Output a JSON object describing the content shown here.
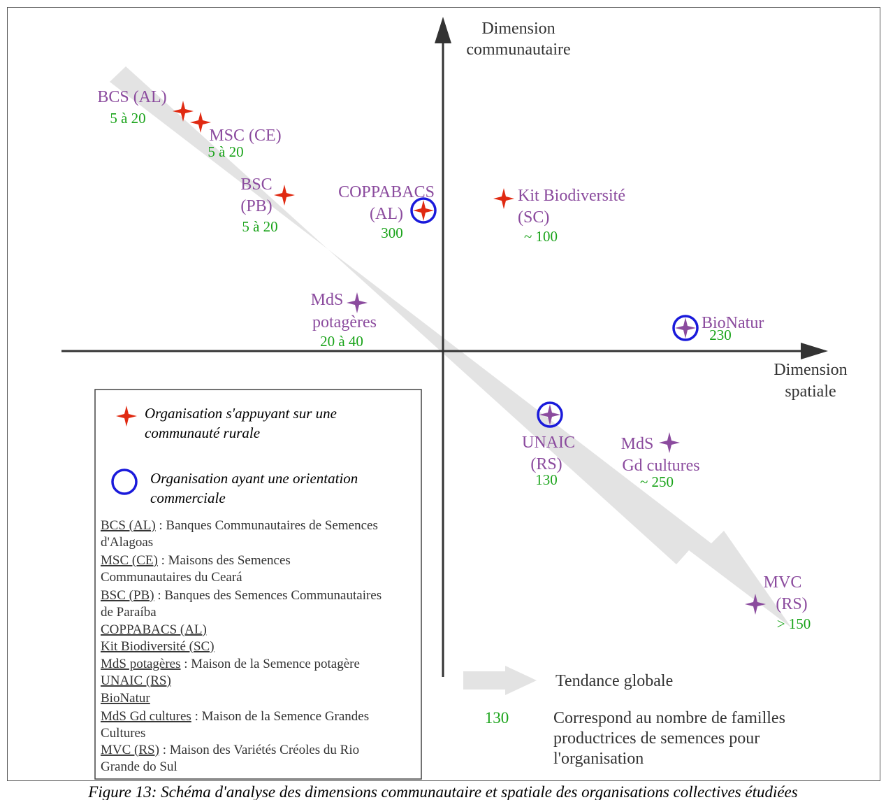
{
  "axes": {
    "y_title_line1": "Dimension",
    "y_title_line2": "communautaire",
    "x_title_line1": "Dimension",
    "x_title_line2": "spatiale"
  },
  "colors": {
    "rural": "#e02a12",
    "commercial_ring": "#1a1adb",
    "label": "#8b4b9e",
    "count": "#19a319",
    "trend": "#e3e3e3",
    "axis": "#333333"
  },
  "organisations": {
    "bcs": {
      "l1": "BCS (AL)",
      "count": "5 à 20"
    },
    "msc": {
      "l1": "MSC (CE)",
      "count": "5 à 20"
    },
    "bsc": {
      "l1": "BSC",
      "l2": "(PB)",
      "count": "5 à 20"
    },
    "coppabacs": {
      "l1": "COPPABACS",
      "l2": "(AL)",
      "count": "300"
    },
    "kit": {
      "l1": "Kit Biodiversité",
      "l2": "(SC)",
      "count": "~ 100"
    },
    "mds_pot": {
      "l1": "MdS",
      "l2": "potagères",
      "count": "20 à 40"
    },
    "bionatur": {
      "l1": "BioNatur",
      "count": "230"
    },
    "unaic": {
      "l1": "UNAIC",
      "l2": "(RS)",
      "count": "130"
    },
    "mds_gd": {
      "l1": "MdS",
      "l2": "Gd cultures",
      "count": "~ 250"
    },
    "mvc": {
      "l1": "MVC",
      "l2": "(RS)",
      "count": "> 150"
    }
  },
  "legend": {
    "rural_l1": "Organisation s'appuyant sur une",
    "rural_l2": "communauté rurale",
    "commercial_l1": "Organisation ayant une orientation",
    "commercial_l2": "commerciale"
  },
  "glossary": {
    "bcs_abbr": "BCS (AL)",
    "bcs_def1": " : Banques Communautaires de Semences",
    "bcs_def2": "d'Alagoas",
    "msc_abbr": "MSC (CE)",
    "msc_def1": " : Maisons des Semences",
    "msc_def2": "Communautaires du Ceará",
    "bsc_abbr": "BSC (PB)",
    "bsc_def1": " : Banques des Semences Communautaires",
    "bsc_def2": "de Paraíba",
    "coppabacs_abbr": "COPPABACS (AL)",
    "kit_abbr": "Kit Biodiversité (SC)",
    "mdsp_abbr": "MdS potagères",
    "mdsp_def": " : Maison de la Semence potagère",
    "unaic_abbr": "UNAIC (RS)",
    "bionatur_abbr": "BioNatur",
    "mdsg_abbr": "MdS Gd cultures",
    "mdsg_def1": " : Maison de la Semence Grandes",
    "mdsg_def2": "Cultures",
    "mvc_abbr": "MVC (RS)",
    "mvc_def1": " : Maison des Variétés Créoles du Rio",
    "mvc_def2": "Grande do Sul"
  },
  "key": {
    "trend_label": "Tendance globale",
    "count_example": "130",
    "count_l1": "Correspond au nombre de familles",
    "count_l2": "productrices de semences pour",
    "count_l3": "l'organisation"
  },
  "caption": "Figure 13: Schéma d'analyse des dimensions communautaire et spatiale des organisations collectives étudiées"
}
